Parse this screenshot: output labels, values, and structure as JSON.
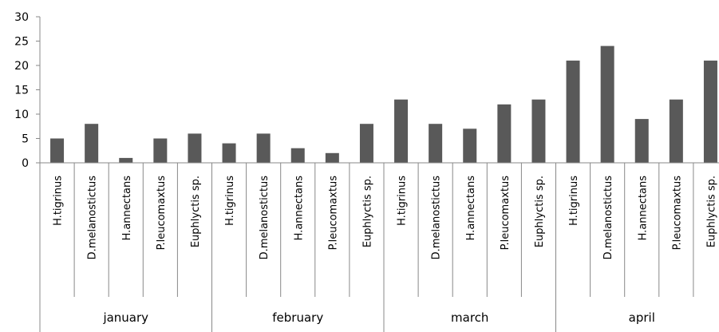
{
  "chart_data": {
    "type": "bar",
    "groups": [
      "january",
      "february",
      "march",
      "april"
    ],
    "categories": [
      "H.tigrinus",
      "D.melanostictus",
      "H.annectans",
      "P.leucomaxtus",
      "Euphlyctis sp."
    ],
    "values": [
      [
        5,
        8,
        1,
        5,
        6
      ],
      [
        4,
        6,
        3,
        2,
        8
      ],
      [
        13,
        8,
        7,
        12,
        13
      ],
      [
        21,
        24,
        9,
        13,
        21
      ]
    ],
    "yticks": [
      0,
      5,
      10,
      15,
      20,
      25,
      30
    ],
    "ylim": [
      0,
      30
    ],
    "title": "",
    "xlabel": "",
    "ylabel": "",
    "grid": false,
    "legend": "none",
    "bar_color": "#595959"
  }
}
